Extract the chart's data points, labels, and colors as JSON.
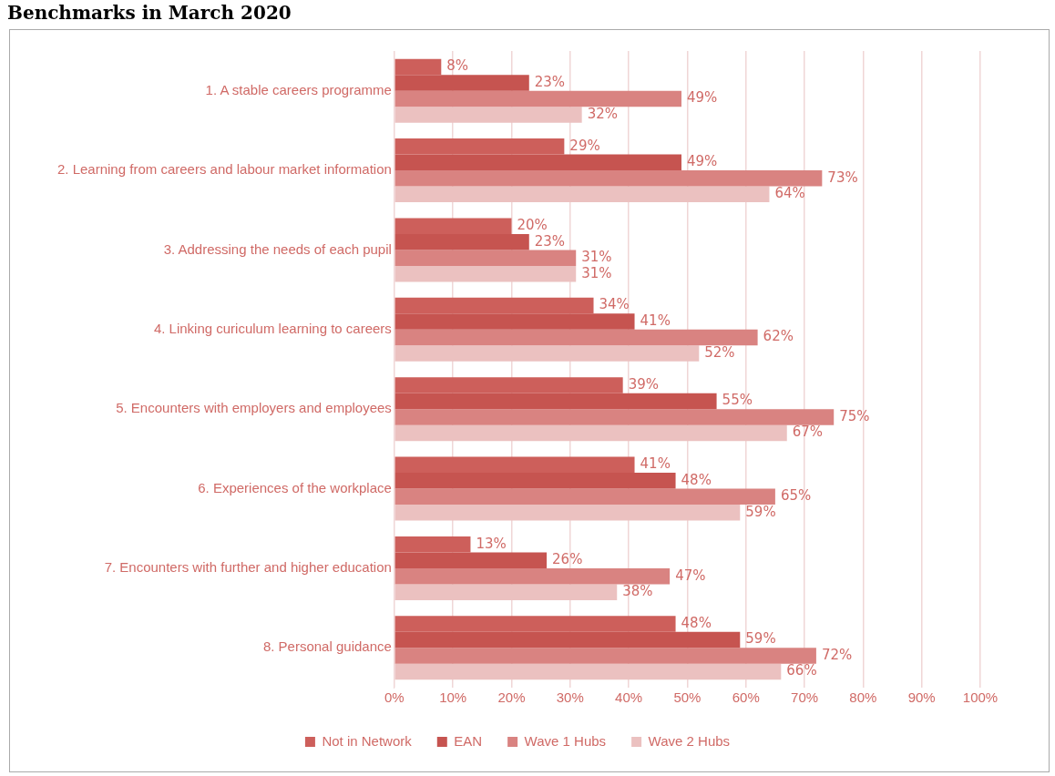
{
  "chart_data": {
    "type": "bar",
    "orientation": "horizontal",
    "title": "Benchmarks in March 2020",
    "categories": [
      "1. A stable careers programme",
      "2. Learning from careers and labour market information",
      "3. Addressing the needs of each pupil",
      "4. Linking curiculum learning to careers",
      "5. Encounters with employers and employees",
      "6. Experiences of the workplace",
      "7. Encounters with further and higher education",
      "8. Personal guidance"
    ],
    "series": [
      {
        "name": "Not in Network",
        "color": "#cd5f5b",
        "values": [
          8,
          29,
          20,
          34,
          39,
          41,
          13,
          48
        ],
        "value_labels": [
          "8%",
          "29%",
          "20%",
          "34%",
          "39%",
          "41%",
          "13%",
          "48%"
        ]
      },
      {
        "name": "EAN",
        "color": "#c65450",
        "values": [
          23,
          49,
          23,
          41,
          55,
          48,
          26,
          59
        ],
        "value_labels": [
          "23%",
          "49%",
          "23%",
          "41%",
          "55%",
          "48%",
          "26%",
          "59%"
        ]
      },
      {
        "name": "Wave 1 Hubs",
        "color": "#d98381",
        "values": [
          49,
          73,
          31,
          62,
          75,
          65,
          47,
          72
        ],
        "value_labels": [
          "49%",
          "73%",
          "31%",
          "62%",
          "75%",
          "65%",
          "47%",
          "72%"
        ]
      },
      {
        "name": "Wave 2 Hubs",
        "color": "#ebc1c0",
        "values": [
          32,
          64,
          31,
          52,
          67,
          59,
          38,
          66
        ],
        "value_labels": [
          "32%",
          "64%",
          "31%",
          "52%",
          "67%",
          "59%",
          "38%",
          "66%"
        ]
      }
    ],
    "xlim": [
      0,
      100
    ],
    "xticks": [
      {
        "value": 0,
        "label": "0%"
      },
      {
        "value": 10,
        "label": "10%"
      },
      {
        "value": 20,
        "label": "20%"
      },
      {
        "value": 30,
        "label": "30%"
      },
      {
        "value": 40,
        "label": "40%"
      },
      {
        "value": 50,
        "label": "50%"
      },
      {
        "value": 60,
        "label": "60%"
      },
      {
        "value": 70,
        "label": "70%"
      },
      {
        "value": 80,
        "label": "80%"
      },
      {
        "value": 90,
        "label": "90%"
      },
      {
        "value": 100,
        "label": "100%"
      }
    ],
    "grid": "x",
    "legend": "bottom"
  }
}
